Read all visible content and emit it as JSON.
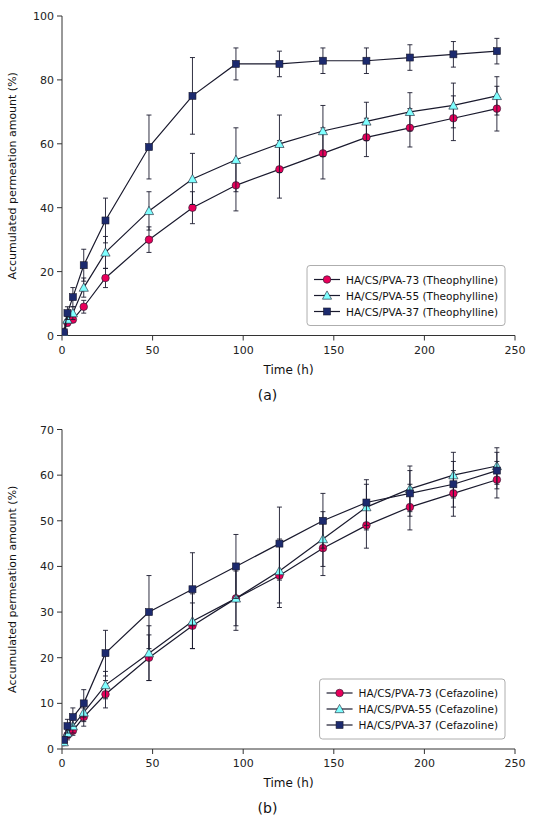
{
  "chart_data": [
    {
      "type": "line",
      "title": "(a)",
      "xlabel": "Time (h)",
      "ylabel": "Accumulated permeation amount (%)",
      "x": [
        1,
        3,
        6,
        12,
        24,
        48,
        72,
        96,
        120,
        144,
        168,
        192,
        216,
        240
      ],
      "color": "#1a1a2e",
      "series": [
        {
          "name": "HA/CS/PVA-73 (Theophylline)",
          "color": "#e8005a",
          "marker": "circle",
          "values": [
            1,
            4,
            5,
            9,
            18,
            30,
            40,
            47,
            52,
            57,
            62,
            65,
            68,
            71
          ],
          "errors": [
            0.5,
            1,
            1,
            2,
            3,
            4,
            5,
            8,
            9,
            8,
            6,
            6,
            7,
            7
          ]
        },
        {
          "name": "HA/CS/PVA-55 (Theophylline)",
          "color": "#7fffff",
          "marker": "triangle",
          "values": [
            1,
            5,
            7,
            15,
            26,
            39,
            49,
            55,
            60,
            64,
            67,
            70,
            72,
            75
          ],
          "errors": [
            0.5,
            1,
            2,
            3,
            5,
            6,
            8,
            10,
            9,
            8,
            6,
            6,
            7,
            6
          ]
        },
        {
          "name": "HA/CS/PVA-37 (Theophylline)",
          "color": "#1c2a6e",
          "marker": "square",
          "values": [
            1,
            7,
            12,
            22,
            36,
            59,
            75,
            85,
            85,
            86,
            86,
            87,
            88,
            89
          ],
          "errors": [
            0.5,
            2,
            3,
            5,
            7,
            10,
            12,
            5,
            4,
            4,
            4,
            4,
            4,
            4
          ]
        }
      ],
      "xlim": [
        0,
        250
      ],
      "xticks": [
        0,
        50,
        100,
        150,
        200,
        250
      ],
      "ylim": [
        0,
        100
      ],
      "yticks": [
        0,
        20,
        40,
        60,
        80,
        100
      ],
      "legend": "lower right"
    },
    {
      "type": "line",
      "title": "(b)",
      "xlabel": "Time (h)",
      "ylabel": "Accumulated permeation amount (%)",
      "x": [
        1,
        3,
        6,
        12,
        24,
        48,
        72,
        96,
        120,
        144,
        168,
        192,
        216,
        240
      ],
      "color": "#1a1a2e",
      "series": [
        {
          "name": "HA/CS/PVA-73 (Cefazoline)",
          "color": "#e8005a",
          "marker": "circle",
          "values": [
            1.5,
            3,
            4,
            7,
            12,
            20,
            27,
            33,
            38,
            44,
            49,
            53,
            56,
            59
          ],
          "errors": [
            0.5,
            1,
            1,
            2,
            3,
            5,
            5,
            6,
            7,
            6,
            5,
            5,
            5,
            4
          ]
        },
        {
          "name": "HA/CS/PVA-55 (Cefazoline)",
          "color": "#7fffff",
          "marker": "triangle",
          "values": [
            1.5,
            3.5,
            5,
            8,
            14,
            21,
            28,
            33,
            39,
            46,
            53,
            57,
            60,
            62
          ],
          "errors": [
            0.5,
            1,
            1.5,
            2,
            3,
            6,
            6,
            7,
            7,
            6,
            5,
            5,
            5,
            4
          ]
        },
        {
          "name": "HA/CS/PVA-37 (Cefazoline)",
          "color": "#1c2a6e",
          "marker": "square",
          "values": [
            2,
            5,
            7,
            10,
            21,
            30,
            35,
            40,
            45,
            50,
            54,
            56,
            58,
            61
          ],
          "errors": [
            0.5,
            1.5,
            2,
            3,
            5,
            8,
            8,
            7,
            8,
            6,
            5,
            5,
            5,
            4
          ]
        }
      ],
      "xlim": [
        0,
        250
      ],
      "xticks": [
        0,
        50,
        100,
        150,
        200,
        250
      ],
      "ylim": [
        0,
        70
      ],
      "yticks": [
        0,
        10,
        20,
        30,
        40,
        50,
        60,
        70
      ],
      "legend": "lower right"
    }
  ]
}
